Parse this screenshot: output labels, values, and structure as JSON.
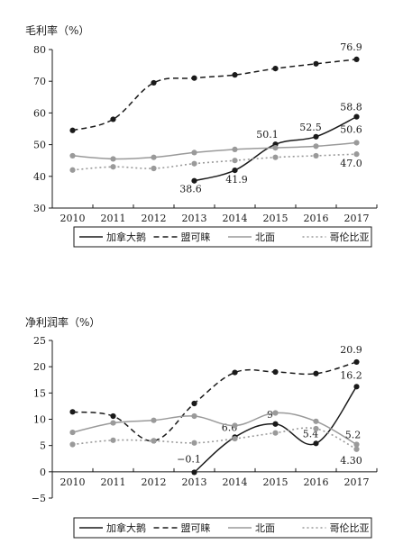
{
  "chart_data": [
    {
      "type": "line",
      "title": "毛利率（%）",
      "xlabel": "",
      "ylabel": "",
      "x": [
        "2010",
        "2011",
        "2012",
        "2013",
        "2014",
        "2015",
        "2016",
        "2017"
      ],
      "ylim": [
        30,
        80
      ],
      "yticks": [
        30,
        40,
        50,
        60,
        70,
        80
      ],
      "grid": false,
      "legend": "bottom",
      "series": [
        {
          "name": "加拿大鹅",
          "color": "#1a1a1a",
          "line_style": "solid",
          "markers": "filled-circle",
          "values": [
            null,
            null,
            null,
            38.6,
            41.9,
            50.1,
            52.5,
            58.8
          ],
          "data_labels": [
            {
              "x": "2013",
              "text": "38.6"
            },
            {
              "x": "2014",
              "text": "41.9"
            },
            {
              "x": "2015",
              "text": "50.1"
            },
            {
              "x": "2016",
              "text": "52.5"
            },
            {
              "x": "2017",
              "text": "58.8"
            }
          ]
        },
        {
          "name": "盟可睐",
          "color": "#1a1a1a",
          "line_style": "dashed",
          "markers": "filled-circle",
          "values": [
            54.5,
            58,
            69.5,
            71,
            72,
            74,
            75.5,
            76.9
          ],
          "data_labels": [
            {
              "x": "2017",
              "text": "76.9"
            }
          ]
        },
        {
          "name": "北面",
          "color": "#9a9a9a",
          "line_style": "solid",
          "markers": "filled-circle",
          "values": [
            46.5,
            45.5,
            46,
            47.5,
            48.5,
            49,
            49.5,
            50.6
          ],
          "data_labels": [
            {
              "x": "2017",
              "text": "50.6"
            }
          ]
        },
        {
          "name": "哥伦比亚",
          "color": "#9a9a9a",
          "line_style": "dotted",
          "markers": "filled-circle",
          "values": [
            42,
            43,
            42.5,
            44,
            45,
            46,
            46.5,
            47.0
          ],
          "data_labels": [
            {
              "x": "2017",
              "text": "47.0"
            }
          ]
        }
      ]
    },
    {
      "type": "line",
      "title": "净利润率（%）",
      "xlabel": "",
      "ylabel": "",
      "x": [
        "2010",
        "2011",
        "2012",
        "2013",
        "2014",
        "2015",
        "2016",
        "2017"
      ],
      "ylim": [
        -5,
        25
      ],
      "yticks": [
        -5,
        0,
        5,
        10,
        15,
        20,
        25
      ],
      "grid": false,
      "legend": "bottom",
      "series": [
        {
          "name": "加拿大鹅",
          "color": "#1a1a1a",
          "line_style": "solid",
          "markers": "filled-circle",
          "values": [
            null,
            null,
            null,
            -0.1,
            6.6,
            9.1,
            5.4,
            16.2
          ],
          "data_labels": [
            {
              "x": "2013",
              "text": "-0.1"
            },
            {
              "x": "2014",
              "text": "6.6"
            },
            {
              "x": "2015",
              "text": "9"
            },
            {
              "x": "2016",
              "text": "5.4"
            },
            {
              "x": "2017",
              "text": "16.2"
            }
          ]
        },
        {
          "name": "盟可睐",
          "color": "#1a1a1a",
          "line_style": "dashed",
          "markers": "filled-circle",
          "values": [
            11.4,
            10.6,
            5.9,
            13,
            18.9,
            19,
            18.7,
            20.9
          ],
          "data_labels": [
            {
              "x": "2017",
              "text": "20.9"
            }
          ]
        },
        {
          "name": "北面",
          "color": "#9a9a9a",
          "line_style": "solid",
          "markers": "filled-circle",
          "values": [
            7.5,
            9.3,
            9.8,
            10.6,
            8.8,
            11.2,
            9.6,
            5.2
          ],
          "data_labels": [
            {
              "x": "2017",
              "text": "5.2"
            }
          ]
        },
        {
          "name": "哥伦比亚",
          "color": "#9a9a9a",
          "line_style": "dotted",
          "markers": "filled-circle",
          "values": [
            5.2,
            6,
            5.9,
            5.5,
            6.3,
            7.4,
            8.2,
            4.3
          ],
          "data_labels": [
            {
              "x": "2017",
              "text": "4.30"
            }
          ]
        }
      ]
    }
  ]
}
